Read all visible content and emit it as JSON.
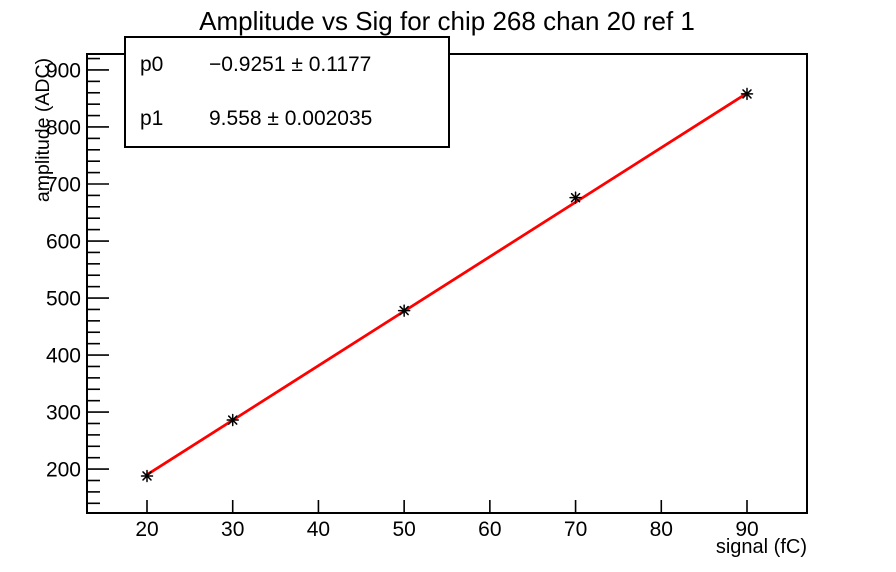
{
  "chart_data": {
    "type": "scatter",
    "title": "Amplitude vs Sig for chip 268 chan 20 ref 1",
    "xlabel": "signal (fC)",
    "ylabel": "amplitude (ADC)",
    "x": [
      20,
      30,
      50,
      70,
      90
    ],
    "y": [
      188,
      286,
      478,
      676,
      858
    ],
    "xlim": [
      13,
      97
    ],
    "ylim": [
      123,
      928
    ],
    "x_major_ticks": [
      20,
      30,
      40,
      50,
      60,
      70,
      80,
      90
    ],
    "x_minor_step": 2,
    "y_major_ticks": [
      200,
      300,
      400,
      500,
      600,
      700,
      800,
      900
    ],
    "y_minor_step": 20,
    "grid": false,
    "marker": "asterisk",
    "fit": {
      "p0": -0.9251,
      "p1": 9.558,
      "x_start": 20,
      "x_end": 90
    },
    "stats_box": {
      "rows": [
        {
          "name": "p0",
          "value": "−0.9251 ± 0.1177"
        },
        {
          "name": "p1",
          "value": "9.558 ± 0.002035"
        }
      ]
    },
    "colors": {
      "fit_line": "#ff0000",
      "marker": "#000000",
      "axis": "#000000",
      "background": "#ffffff"
    }
  }
}
